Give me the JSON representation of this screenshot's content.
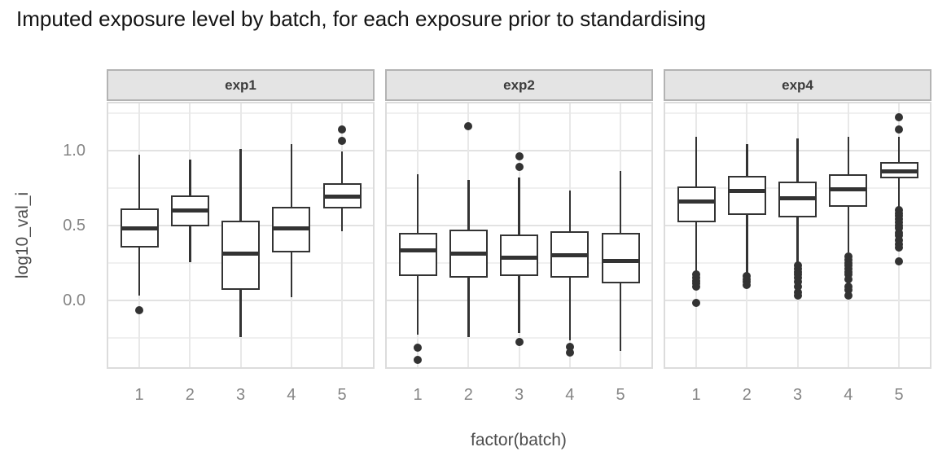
{
  "title": "Imputed exposure level by batch, for each exposure prior to standardising",
  "chart_data": {
    "type": "boxplot",
    "faceted": true,
    "xlabel": "factor(batch)",
    "ylabel": "log10_val_i",
    "categories": [
      "1",
      "2",
      "3",
      "4",
      "5"
    ],
    "y_ticks": {
      "labels": [
        "0.0",
        "0.5",
        "1.0"
      ],
      "values": [
        0.0,
        0.5,
        1.0
      ]
    },
    "y_minor_gridlines": [
      -0.25,
      0.25,
      0.75,
      1.25
    ],
    "ylim": [
      -0.46,
      1.32
    ],
    "grid": true,
    "legend": false,
    "facets": [
      {
        "label": "exp1",
        "boxes": [
          {
            "batch": "1",
            "whisker_low": 0.03,
            "q1": 0.35,
            "median": 0.48,
            "q3": 0.61,
            "whisker_high": 0.97,
            "outliers": [
              -0.07
            ]
          },
          {
            "batch": "2",
            "whisker_low": 0.25,
            "q1": 0.49,
            "median": 0.6,
            "q3": 0.7,
            "whisker_high": 0.94,
            "outliers": []
          },
          {
            "batch": "3",
            "whisker_low": -0.25,
            "q1": 0.07,
            "median": 0.31,
            "q3": 0.53,
            "whisker_high": 1.01,
            "outliers": []
          },
          {
            "batch": "4",
            "whisker_low": 0.02,
            "q1": 0.32,
            "median": 0.48,
            "q3": 0.62,
            "whisker_high": 1.04,
            "outliers": []
          },
          {
            "batch": "5",
            "whisker_low": 0.46,
            "q1": 0.61,
            "median": 0.69,
            "q3": 0.78,
            "whisker_high": 0.99,
            "outliers": [
              1.06,
              1.14
            ]
          }
        ]
      },
      {
        "label": "exp2",
        "boxes": [
          {
            "batch": "1",
            "whisker_low": -0.23,
            "q1": 0.16,
            "median": 0.33,
            "q3": 0.45,
            "whisker_high": 0.84,
            "outliers": [
              -0.32,
              -0.4
            ]
          },
          {
            "batch": "2",
            "whisker_low": -0.25,
            "q1": 0.15,
            "median": 0.31,
            "q3": 0.47,
            "whisker_high": 0.8,
            "outliers": [
              1.16
            ]
          },
          {
            "batch": "3",
            "whisker_low": -0.22,
            "q1": 0.16,
            "median": 0.28,
            "q3": 0.44,
            "whisker_high": 0.82,
            "outliers": [
              0.96,
              0.89,
              -0.28
            ]
          },
          {
            "batch": "4",
            "whisker_low": -0.27,
            "q1": 0.15,
            "median": 0.3,
            "q3": 0.46,
            "whisker_high": 0.73,
            "outliers": [
              -0.31,
              -0.35
            ]
          },
          {
            "batch": "5",
            "whisker_low": -0.34,
            "q1": 0.11,
            "median": 0.26,
            "q3": 0.45,
            "whisker_high": 0.86,
            "outliers": []
          }
        ]
      },
      {
        "label": "exp4",
        "boxes": [
          {
            "batch": "1",
            "whisker_low": 0.18,
            "q1": 0.52,
            "median": 0.66,
            "q3": 0.76,
            "whisker_high": 1.09,
            "outliers": [
              0.17,
              0.15,
              0.13,
              0.11,
              0.09,
              -0.02
            ]
          },
          {
            "batch": "2",
            "whisker_low": 0.18,
            "q1": 0.57,
            "median": 0.73,
            "q3": 0.83,
            "whisker_high": 1.04,
            "outliers": [
              0.16,
              0.14,
              0.12,
              0.1
            ]
          },
          {
            "batch": "3",
            "whisker_low": 0.25,
            "q1": 0.55,
            "median": 0.68,
            "q3": 0.79,
            "whisker_high": 1.08,
            "outliers": [
              0.23,
              0.21,
              0.19,
              0.17,
              0.15,
              0.12,
              0.09,
              0.05,
              0.03
            ]
          },
          {
            "batch": "4",
            "whisker_low": 0.32,
            "q1": 0.62,
            "median": 0.74,
            "q3": 0.84,
            "whisker_high": 1.09,
            "outliers": [
              0.29,
              0.27,
              0.25,
              0.23,
              0.21,
              0.19,
              0.17,
              0.14,
              0.09,
              0.07,
              0.03
            ]
          },
          {
            "batch": "5",
            "whisker_low": 0.62,
            "q1": 0.81,
            "median": 0.86,
            "q3": 0.92,
            "whisker_high": 1.09,
            "outliers": [
              1.22,
              1.14,
              0.6,
              0.58,
              0.56,
              0.54,
              0.52,
              0.5,
              0.48,
              0.45,
              0.43,
              0.4,
              0.37,
              0.35,
              0.26
            ]
          }
        ]
      }
    ]
  },
  "colors": {
    "box_stroke": "#333333",
    "grid_major": "#e2e2e2",
    "grid_minor": "#f0f0f0",
    "grid_vertical": "#e8e8e8",
    "strip_fill": "#e4e4e4",
    "strip_border": "#b3b3b3",
    "panel_border": "#dcdcdc",
    "axis_text": "#858585",
    "axis_title": "#4d4d4d",
    "title_text": "#141414",
    "background": "#ffffff"
  }
}
